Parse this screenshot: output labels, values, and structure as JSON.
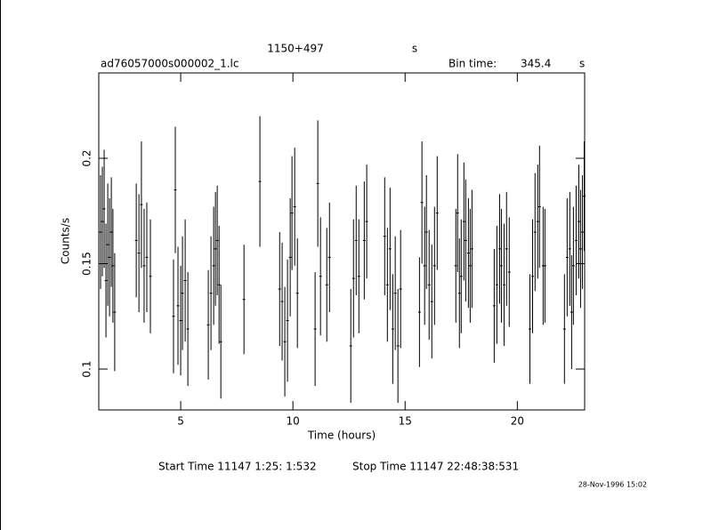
{
  "chart_data": {
    "type": "errorbar",
    "title": "1150+497",
    "title_unit": "s",
    "file": "ad76057000s000002_1.lc",
    "bin_time_label": "Bin time:",
    "bin_time": 345.4,
    "bin_time_unit": "s",
    "xlabel": "Time (hours)",
    "ylabel": "Counts/s",
    "start_time": "Start Time 11147  1:25: 1:532",
    "stop_time": "Stop Time 11147 22:48:38:531",
    "timestamp": "28-Nov-1996 15:02",
    "color": "#000000",
    "xlim": [
      1.35,
      23.0
    ],
    "ylim": [
      0.0806,
      0.2405
    ],
    "xticks": [
      5,
      10,
      15,
      20
    ],
    "yticks": [
      0.1,
      0.15,
      0.2
    ],
    "x": [
      1.43,
      1.51,
      1.59,
      1.67,
      1.75,
      1.83,
      1.91,
      1.98,
      2.06,
      3.02,
      3.14,
      3.25,
      3.37,
      3.49,
      3.65,
      4.68,
      4.76,
      4.88,
      5.0,
      5.08,
      5.2,
      5.32,
      6.23,
      6.35,
      6.47,
      6.55,
      6.63,
      6.71,
      6.79,
      7.82,
      8.53,
      9.41,
      9.52,
      9.64,
      9.76,
      9.88,
      9.96,
      10.08,
      10.2,
      10.99,
      11.11,
      11.23,
      11.51,
      11.63,
      12.58,
      12.7,
      12.82,
      12.94,
      13.18,
      13.29,
      14.09,
      14.21,
      14.33,
      14.45,
      14.56,
      14.68,
      14.8,
      15.64,
      15.75,
      15.87,
      15.95,
      16.07,
      16.19,
      16.31,
      16.43,
      17.26,
      17.34,
      17.42,
      17.5,
      17.62,
      17.7,
      17.82,
      17.9,
      17.98,
      18.97,
      19.09,
      19.21,
      19.29,
      19.41,
      19.52,
      19.64,
      20.56,
      20.68,
      20.79,
      20.91,
      20.99,
      21.15,
      21.23,
      22.1,
      22.22,
      22.34,
      22.42,
      22.5,
      22.62,
      22.74,
      22.82,
      22.9,
      22.98
    ],
    "values": [
      0.165,
      0.17,
      0.176,
      0.142,
      0.159,
      0.153,
      0.165,
      0.149,
      0.127,
      0.161,
      0.155,
      0.178,
      0.149,
      0.153,
      0.144,
      0.125,
      0.185,
      0.13,
      0.123,
      0.136,
      0.142,
      0.119,
      0.121,
      0.136,
      0.149,
      0.157,
      0.161,
      0.14,
      0.113,
      0.133,
      0.189,
      0.138,
      0.132,
      0.113,
      0.123,
      0.153,
      0.174,
      0.177,
      0.136,
      0.119,
      0.188,
      0.144,
      0.14,
      0.153,
      0.111,
      0.143,
      0.161,
      0.144,
      0.161,
      0.17,
      0.163,
      0.14,
      0.157,
      0.119,
      0.136,
      0.111,
      0.138,
      0.127,
      0.179,
      0.149,
      0.165,
      0.14,
      0.132,
      0.149,
      0.174,
      0.149,
      0.174,
      0.136,
      0.144,
      0.17,
      0.161,
      0.155,
      0.149,
      0.157,
      0.13,
      0.14,
      0.157,
      0.149,
      0.14,
      0.157,
      0.146,
      0.119,
      0.144,
      0.165,
      0.17,
      0.177,
      0.149,
      0.149,
      0.119,
      0.153,
      0.157,
      0.127,
      0.149,
      0.161,
      0.17,
      0.157,
      0.165,
      0.182
    ],
    "errors": [
      0.027,
      0.026,
      0.028,
      0.027,
      0.029,
      0.028,
      0.026,
      0.027,
      0.028,
      0.027,
      0.028,
      0.03,
      0.027,
      0.026,
      0.027,
      0.027,
      0.03,
      0.028,
      0.026,
      0.027,
      0.029,
      0.027,
      0.026,
      0.027,
      0.028,
      0.027,
      0.026,
      0.028,
      0.027,
      0.026,
      0.031,
      0.027,
      0.028,
      0.026,
      0.029,
      0.028,
      0.027,
      0.028,
      0.026,
      0.027,
      0.03,
      0.028,
      0.027,
      0.026,
      0.027,
      0.028,
      0.026,
      0.027,
      0.028,
      0.027,
      0.028,
      0.027,
      0.029,
      0.026,
      0.027,
      0.027,
      0.028,
      0.026,
      0.029,
      0.028,
      0.027,
      0.026,
      0.027,
      0.028,
      0.027,
      0.027,
      0.028,
      0.026,
      0.027,
      0.028,
      0.029,
      0.026,
      0.027,
      0.028,
      0.027,
      0.028,
      0.026,
      0.027,
      0.029,
      0.027,
      0.026,
      0.026,
      0.027,
      0.028,
      0.027,
      0.029,
      0.028,
      0.027,
      0.026,
      0.028,
      0.027,
      0.027,
      0.028,
      0.026,
      0.027,
      0.028,
      0.027,
      0.026
    ]
  }
}
